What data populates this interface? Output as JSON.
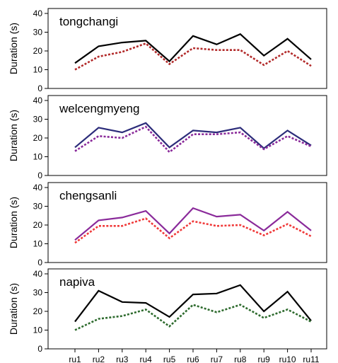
{
  "chart_data": {
    "type": "line",
    "categories": [
      "ru1",
      "ru2",
      "ru3",
      "ru4",
      "ru5",
      "ru6",
      "ru7",
      "ru8",
      "ru9",
      "ru10",
      "ru11"
    ],
    "ylabel": "Duration (s)",
    "ylim": [
      0,
      40
    ],
    "yticks": [
      0,
      10,
      20,
      30,
      40
    ],
    "grid": false,
    "panels": [
      {
        "title": "tongchangi",
        "series": [
          {
            "style": "solid",
            "color": "#000000",
            "values": [
              13.5,
              22.5,
              24.5,
              25.5,
              14.5,
              28,
              23.5,
              29,
              17.5,
              26.5,
              15.5
            ]
          },
          {
            "style": "dotted",
            "color": "#b22a2a",
            "values": [
              10,
              17,
              19.5,
              24,
              13,
              21.5,
              20.5,
              20.5,
              12.5,
              20,
              12
            ]
          }
        ]
      },
      {
        "title": "welcengmyeng",
        "series": [
          {
            "style": "solid",
            "color": "#2c2c7a",
            "values": [
              15,
              25.5,
              23,
              28,
              15,
              24,
              23,
              25.5,
              14.5,
              24,
              16
            ]
          },
          {
            "style": "dotted",
            "color": "#8a2a9a",
            "values": [
              13,
              21,
              20,
              26,
              12.5,
              22,
              22,
              23,
              14,
              21,
              15.5
            ]
          }
        ]
      },
      {
        "title": "chengsanli",
        "series": [
          {
            "style": "solid",
            "color": "#8a2a9a",
            "values": [
              12,
              22.5,
              24,
              27.5,
              15.5,
              29,
              24.5,
              25.5,
              17,
              27,
              17
            ]
          },
          {
            "style": "dotted",
            "color": "#f03a3a",
            "values": [
              10.5,
              19.5,
              19.5,
              23.5,
              13,
              22,
              19.5,
              20,
              14.5,
              20.5,
              14
            ]
          }
        ]
      },
      {
        "title": "napiva",
        "series": [
          {
            "style": "solid",
            "color": "#000000",
            "values": [
              14.5,
              31,
              25,
              24.5,
              17,
              29,
              29.5,
              34,
              20,
              30.5,
              15
            ]
          },
          {
            "style": "dotted",
            "color": "#2e6b2e",
            "values": [
              10,
              16,
              17.5,
              21,
              12,
              23.5,
              19.5,
              23.5,
              16.5,
              21,
              14.5
            ]
          }
        ]
      }
    ]
  }
}
